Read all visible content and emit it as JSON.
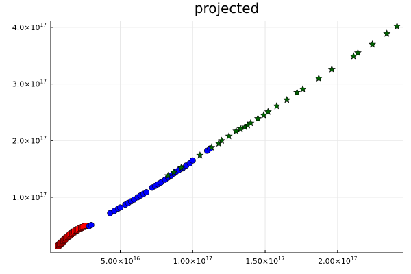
{
  "chart_data": {
    "type": "scatter",
    "title": "projected",
    "xlabel": "",
    "ylabel": "",
    "xlim": [
      2000000000000000.0,
      2.45e+17
    ],
    "ylim": [
      2000000000000000.0,
      4.12e+17
    ],
    "grid": true,
    "legend": "none",
    "x_ticks": [
      {
        "value": 5e+16,
        "mantissa": "5.00×10",
        "exp": "16"
      },
      {
        "value": 1e+17,
        "mantissa": "1.00×10",
        "exp": "17"
      },
      {
        "value": 1.5e+17,
        "mantissa": "1.50×10",
        "exp": "17"
      },
      {
        "value": 2e+17,
        "mantissa": "2.00×10",
        "exp": "17"
      }
    ],
    "y_ticks": [
      {
        "value": 1e+17,
        "mantissa": "1.0×10",
        "exp": "17"
      },
      {
        "value": 2e+17,
        "mantissa": "2.0×10",
        "exp": "17"
      },
      {
        "value": 3e+17,
        "mantissa": "3.0×10",
        "exp": "17"
      },
      {
        "value": 4e+17,
        "mantissa": "4.0×10",
        "exp": "17"
      }
    ],
    "series": [
      {
        "marker": "square",
        "color": "#ff0000",
        "x": [
          7200000000000000.0,
          7800000000000000.0,
          8400000000000000.0,
          9000000000000000.0,
          9600000000000000.0,
          1.02e+16,
          1.08e+16,
          1.14e+16,
          1.2e+16,
          1.26e+16,
          1.32e+16,
          1.38e+16,
          1.45e+16,
          1.52e+16,
          1.6e+16,
          1.68e+16,
          1.76e+16,
          1.84e+16,
          1.92e+16,
          2e+16,
          2.1e+16,
          2.2e+16,
          2.3e+16,
          2.42e+16,
          2.55e+16,
          2.68e+16
        ],
        "y": [
          1.4e+16,
          1.55e+16,
          1.7e+16,
          1.85e+16,
          2e+16,
          2.15e+16,
          2.3e+16,
          2.45e+16,
          2.6e+16,
          2.75e+16,
          2.9e+16,
          3.05e+16,
          3.2e+16,
          3.35e+16,
          3.5e+16,
          3.65e+16,
          3.8e+16,
          3.95e+16,
          4.1e+16,
          4.2e+16,
          4.35e+16,
          4.5e+16,
          4.6e+16,
          4.75e+16,
          4.9e+16,
          5e+16
        ]
      },
      {
        "marker": "circle",
        "color": "#0000ff",
        "x": [
          2.85e+16,
          3e+16,
          4.3e+16,
          4.6e+16,
          4.85e+16,
          5e+16,
          5.35e+16,
          5.55e+16,
          5.75e+16,
          5.95e+16,
          6.2e+16,
          6.4e+16,
          6.6e+16,
          6.8e+16,
          7.2e+16,
          7.4e+16,
          7.6e+16,
          7.8e+16,
          8.1e+16,
          8.3e+16,
          8.5e+16,
          8.7e+16,
          8.85e+16,
          9.05e+16,
          9.3e+16,
          9.55e+16,
          9.8e+16,
          1e+17,
          1.1e+17,
          1.12e+17
        ],
        "y": [
          4.9e+16,
          5.1e+16,
          7.2e+16,
          7.6e+16,
          8e+16,
          8.2e+16,
          8.7e+16,
          9e+16,
          9.3e+16,
          9.6e+16,
          1e+17,
          1.03e+17,
          1.06e+17,
          1.09e+17,
          1.17e+17,
          1.2e+17,
          1.23e+17,
          1.26e+17,
          1.31e+17,
          1.35e+17,
          1.38e+17,
          1.42e+17,
          1.45e+17,
          1.48e+17,
          1.51e+17,
          1.56e+17,
          1.6e+17,
          1.65e+17,
          1.82e+17,
          1.86e+17
        ]
      },
      {
        "marker": "star",
        "color": "#006400",
        "x": [
          8.3e+16,
          8.7e+16,
          9.2e+16,
          1.05e+17,
          1.13e+17,
          1.18e+17,
          1.2e+17,
          1.25e+17,
          1.3e+17,
          1.33e+17,
          1.36e+17,
          1.38e+17,
          1.4e+17,
          1.45e+17,
          1.49e+17,
          1.52e+17,
          1.58e+17,
          1.65e+17,
          1.72e+17,
          1.76e+17,
          1.87e+17,
          1.96e+17,
          2.11e+17,
          2.14e+17,
          2.24e+17,
          2.34e+17,
          2.41e+17
        ],
        "y": [
          1.38e+17,
          1.44e+17,
          1.52e+17,
          1.74e+17,
          1.88e+17,
          1.95e+17,
          2e+17,
          2.08e+17,
          2.17e+17,
          2.21e+17,
          2.24e+17,
          2.27e+17,
          2.31e+17,
          2.39e+17,
          2.45e+17,
          2.51e+17,
          2.61e+17,
          2.72e+17,
          2.85e+17,
          2.91e+17,
          3.1e+17,
          3.26e+17,
          3.49e+17,
          3.55e+17,
          3.7e+17,
          3.89e+17,
          4.02e+17
        ]
      }
    ]
  }
}
